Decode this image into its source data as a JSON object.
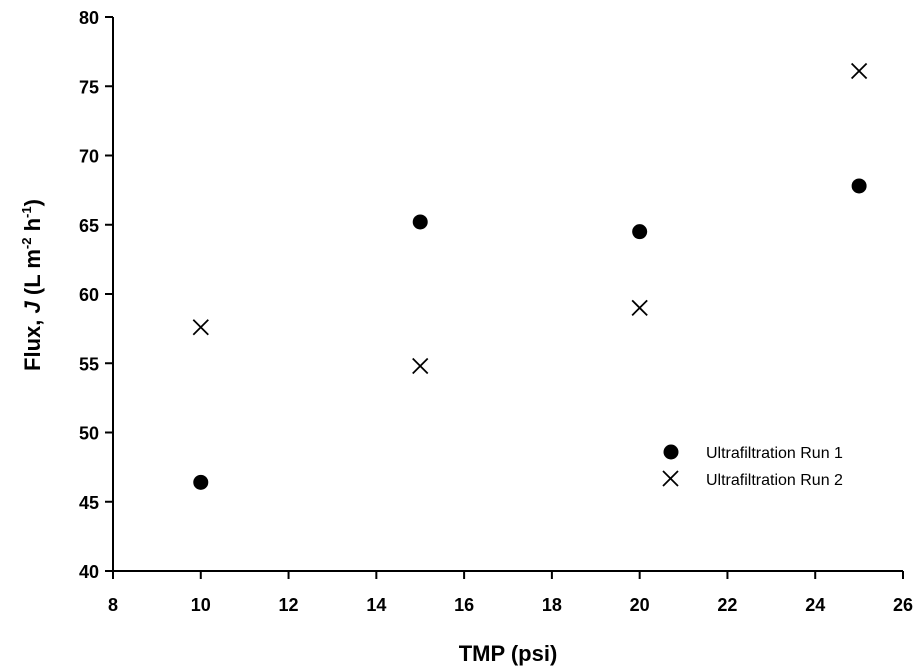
{
  "chart_data": {
    "type": "scatter",
    "xlabel": "TMP (psi)",
    "ylabel": {
      "prefix": "Flux, ",
      "italic": "J",
      "unit_open": " (L m",
      "sup1": "-2",
      "unit_mid": " h",
      "sup2": "-1",
      "unit_close": ")"
    },
    "xlim": [
      8,
      26
    ],
    "ylim": [
      40,
      80
    ],
    "xticks": [
      "8",
      "10",
      "12",
      "14",
      "16",
      "18",
      "20",
      "22",
      "24",
      "26"
    ],
    "yticks": [
      "40",
      "45",
      "50",
      "55",
      "60",
      "65",
      "70",
      "75",
      "80"
    ],
    "grid": false,
    "legend_position": "right",
    "series": [
      {
        "name": "Ultrafiltration Run 1",
        "marker": "filled-circle",
        "color": "#000000",
        "points": [
          {
            "x": 10,
            "y": 46.4
          },
          {
            "x": 15,
            "y": 65.2
          },
          {
            "x": 20,
            "y": 64.5
          },
          {
            "x": 25,
            "y": 67.8
          }
        ]
      },
      {
        "name": "Ultrafiltration Run 2",
        "marker": "x",
        "color": "#000000",
        "points": [
          {
            "x": 10,
            "y": 57.6
          },
          {
            "x": 15,
            "y": 54.8
          },
          {
            "x": 20,
            "y": 59.0
          },
          {
            "x": 25,
            "y": 76.1
          }
        ]
      }
    ]
  }
}
